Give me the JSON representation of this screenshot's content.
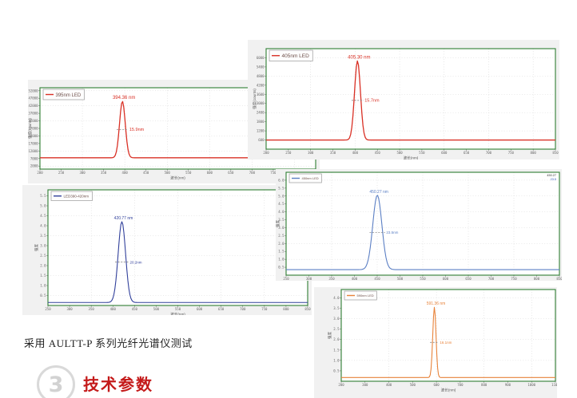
{
  "page": {
    "caption": "采用 AULTT-P 系列光纤光谱仪测试",
    "section_number": "3",
    "section_title": "技术参数",
    "accent_color": "#c41a1a",
    "badge_color": "#d9d9d9"
  },
  "chart_data": [
    {
      "type": "line",
      "legend": "405nm LED",
      "color": "#d93025",
      "peak_label": "405.30 nm",
      "fwhm_label": "15.7nm",
      "peak_nm": 405.3,
      "fwhm_nm": 15.7,
      "baseline_value": 600,
      "peak_value": 5800,
      "x_range": [
        200,
        850
      ],
      "y_range": [
        0,
        6600
      ],
      "x_ticks": [
        200,
        250,
        300,
        350,
        400,
        450,
        500,
        550,
        600,
        650,
        700,
        750,
        800,
        850
      ],
      "y_ticks": [
        "6000",
        "5400",
        "4800",
        "4200",
        "3600",
        "3000",
        "2400",
        "1800",
        "1200",
        "600"
      ],
      "xlabel": "波长(nm)",
      "ylabel": "强度(counts)",
      "grid": true,
      "legend_position": "top-left"
    },
    {
      "type": "line",
      "legend": "395nm LED",
      "color": "#d93025",
      "peak_label": "394.36 nm",
      "fwhm_label": "15.9nm",
      "peak_nm": 394.36,
      "fwhm_nm": 15.9,
      "baseline_value": 7500,
      "peak_value": 45000,
      "x_range": [
        200,
        850
      ],
      "y_range": [
        0,
        54000
      ],
      "x_ticks": [
        200,
        250,
        300,
        350,
        400,
        450,
        500,
        550,
        600,
        650,
        700,
        750,
        800,
        850
      ],
      "y_ticks": [
        "52000",
        "47000",
        "42000",
        "37000",
        "32000",
        "27000",
        "22000",
        "17000",
        "12000",
        "7000",
        "2000"
      ],
      "xlabel": "波长(nm)",
      "ylabel": "强度(counts)",
      "grid": true,
      "legend_position": "top-left"
    },
    {
      "type": "line",
      "legend": "LED390-420nm",
      "color": "#31409b",
      "peak_label": "420.77 nm",
      "fwhm_label": "20.2nm",
      "peak_nm": 420.77,
      "fwhm_nm": 20.2,
      "baseline_value": 0.15,
      "peak_value": 4.2,
      "x_range": [
        250,
        850
      ],
      "y_range": [
        0,
        5.8
      ],
      "x_ticks": [
        250,
        300,
        350,
        400,
        450,
        500,
        550,
        600,
        650,
        700,
        750,
        800,
        850
      ],
      "y_ticks": [
        "5.5",
        "5.0",
        "4.5",
        "4.0",
        "3.5",
        "3.0",
        "2.5",
        "2.0",
        "1.5",
        "1.0",
        "0.5"
      ],
      "xlabel": "波长(nm)",
      "ylabel": "强度",
      "grid": true,
      "legend_position": "top-left"
    },
    {
      "type": "line",
      "legend": "450nm LED",
      "color": "#5b7fc4",
      "peak_label": "450.27 nm",
      "fwhm_label": "23.5nm",
      "peak_nm": 450.27,
      "fwhm_nm": 23.5,
      "baseline_value": 0.35,
      "peak_value": 5.05,
      "x_range": [
        250,
        850
      ],
      "y_range": [
        0,
        6.5
      ],
      "x_ticks": [
        250,
        300,
        350,
        400,
        450,
        500,
        550,
        600,
        650,
        700,
        750,
        800,
        850
      ],
      "y_ticks": [
        "6.0",
        "5.5",
        "5.0",
        "4.5",
        "4.0",
        "3.5",
        "3.0",
        "2.5",
        "2.0",
        "1.5",
        "1.0",
        "0.5"
      ],
      "xlabel": "波长(nm)",
      "ylabel": "强度",
      "corner_info": [
        "450.27",
        "23.5"
      ],
      "grid": true,
      "legend_position": "top-left"
    },
    {
      "type": "line",
      "legend": "590nm LED",
      "color": "#e8833a",
      "peak_label": "591.36 nm",
      "fwhm_label": "16.1nm",
      "peak_nm": 591.36,
      "fwhm_nm": 16.1,
      "baseline_value": 0.18,
      "peak_value": 3.55,
      "x_range": [
        200,
        1100
      ],
      "y_range": [
        0,
        4.4
      ],
      "x_ticks": [
        200,
        300,
        400,
        500,
        600,
        700,
        800,
        900,
        1000,
        1100
      ],
      "y_ticks": [
        "4.0",
        "3.5",
        "3.0",
        "2.5",
        "2.0",
        "1.5",
        "1.0",
        "0.5"
      ],
      "xlabel": "波长(nm)",
      "ylabel": "强度",
      "grid": true,
      "legend_position": "top-left"
    }
  ]
}
